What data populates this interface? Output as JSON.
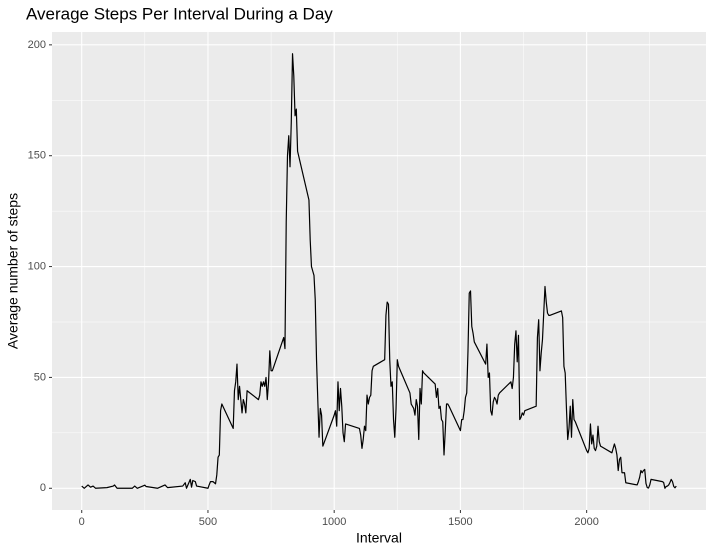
{
  "chart_data": {
    "type": "line",
    "title": "Average Steps Per Interval During a Day",
    "x_label": "Interval",
    "y_label": "Average number of steps",
    "color": "#000000",
    "x": [
      0,
      10,
      25,
      35,
      45,
      55,
      100,
      125,
      130,
      140,
      200,
      210,
      220,
      250,
      255,
      300,
      330,
      340,
      400,
      410,
      415,
      430,
      435,
      440,
      450,
      455,
      500,
      505,
      510,
      520,
      530,
      535,
      540,
      545,
      550,
      555,
      600,
      605,
      610,
      615,
      620,
      625,
      630,
      635,
      640,
      645,
      650,
      655,
      700,
      705,
      710,
      715,
      720,
      725,
      730,
      735,
      740,
      745,
      750,
      755,
      800,
      805,
      810,
      815,
      820,
      825,
      830,
      835,
      840,
      845,
      850,
      855,
      900,
      905,
      910,
      915,
      920,
      925,
      930,
      935,
      940,
      945,
      950,
      955,
      1000,
      1005,
      1010,
      1015,
      1020,
      1025,
      1030,
      1035,
      1040,
      1045,
      1100,
      1105,
      1110,
      1115,
      1120,
      1125,
      1130,
      1135,
      1140,
      1145,
      1150,
      1155,
      1200,
      1205,
      1210,
      1215,
      1220,
      1225,
      1230,
      1235,
      1240,
      1245,
      1250,
      1255,
      1300,
      1305,
      1310,
      1315,
      1320,
      1325,
      1330,
      1335,
      1340,
      1345,
      1350,
      1355,
      1400,
      1405,
      1410,
      1415,
      1420,
      1425,
      1430,
      1435,
      1440,
      1445,
      1450,
      1455,
      1500,
      1505,
      1510,
      1515,
      1520,
      1525,
      1530,
      1535,
      1540,
      1545,
      1550,
      1555,
      1600,
      1605,
      1610,
      1615,
      1620,
      1625,
      1630,
      1635,
      1640,
      1645,
      1650,
      1655,
      1700,
      1705,
      1710,
      1715,
      1720,
      1725,
      1730,
      1735,
      1740,
      1745,
      1750,
      1755,
      1800,
      1805,
      1810,
      1815,
      1820,
      1825,
      1830,
      1835,
      1840,
      1845,
      1850,
      1855,
      1900,
      1905,
      1910,
      1915,
      1920,
      1925,
      1930,
      1935,
      1940,
      1945,
      1950,
      1955,
      2000,
      2005,
      2010,
      2015,
      2020,
      2025,
      2030,
      2035,
      2040,
      2045,
      2050,
      2055,
      2100,
      2105,
      2110,
      2115,
      2120,
      2125,
      2130,
      2135,
      2140,
      2145,
      2150,
      2155,
      2200,
      2205,
      2210,
      2215,
      2220,
      2225,
      2230,
      2235,
      2240,
      2245,
      2250,
      2255,
      2300,
      2305,
      2310,
      2315,
      2320,
      2325,
      2330,
      2335,
      2340,
      2345,
      2350,
      2355
    ],
    "values": [
      1,
      0,
      1.5,
      0.5,
      1,
      0,
      0.3,
      1,
      1.5,
      0,
      0,
      1,
      0,
      1.4,
      0.8,
      0,
      1.5,
      0.3,
      1,
      2.5,
      0,
      4,
      0.5,
      3.5,
      3,
      1,
      0,
      1.6,
      3,
      3,
      2,
      6,
      14,
      15,
      35,
      38,
      27,
      44,
      48,
      56,
      40,
      46,
      40,
      34,
      40,
      38,
      34,
      44,
      40,
      42,
      48,
      46,
      48,
      46,
      50,
      40,
      48,
      62,
      53,
      53,
      68,
      63,
      120,
      150,
      159,
      145,
      165,
      196,
      186,
      168,
      171,
      152,
      130,
      112,
      100,
      98,
      96,
      85,
      58,
      40,
      23,
      36,
      33,
      19,
      33,
      35,
      28,
      48,
      35,
      45,
      37,
      25,
      21,
      29,
      27,
      24,
      18,
      22,
      28,
      26,
      42,
      38,
      41,
      42,
      53,
      55,
      58,
      78,
      84,
      83,
      58,
      46,
      48,
      31,
      23,
      36,
      58,
      55,
      43,
      38,
      37,
      36,
      33,
      40,
      37,
      22,
      45,
      38,
      53,
      52,
      47,
      41,
      45,
      36,
      37,
      31,
      30,
      15,
      26,
      38,
      38,
      37,
      26,
      31,
      31,
      35,
      41,
      43,
      62,
      88,
      89,
      73,
      70,
      66,
      56,
      65,
      50,
      52,
      35,
      33,
      39,
      41,
      40,
      38,
      42,
      43,
      48,
      45,
      50,
      65,
      71,
      57,
      69,
      31,
      32,
      34,
      33,
      35,
      37,
      68,
      76,
      53,
      61,
      67,
      79,
      91,
      84,
      79,
      78,
      78,
      80,
      77,
      55,
      52,
      36,
      22,
      27,
      37,
      23,
      40,
      31,
      30,
      17,
      16,
      18,
      29,
      20,
      24,
      18,
      17,
      19,
      28,
      21,
      19,
      16,
      18,
      20,
      18,
      15,
      8,
      13,
      14,
      7,
      7,
      7,
      2.5,
      1.5,
      3,
      5,
      8,
      7,
      8,
      8.5,
      2.2,
      0.3,
      0.1,
      1.5,
      4,
      3,
      2.6,
      0,
      0.8,
      1,
      1.5,
      2.6,
      4,
      3,
      0.8,
      0.2,
      1
    ],
    "xlim": [
      -117.75,
      2472.75
    ],
    "ylim": [
      -9.8,
      205.8
    ],
    "xticks": [
      0,
      500,
      1000,
      1500,
      2000
    ],
    "yticks": [
      0,
      50,
      100,
      150,
      200
    ],
    "xminor": [
      250,
      750,
      1250,
      1750,
      2250
    ],
    "yminor": [
      25,
      75,
      125,
      175
    ],
    "grid": true
  }
}
